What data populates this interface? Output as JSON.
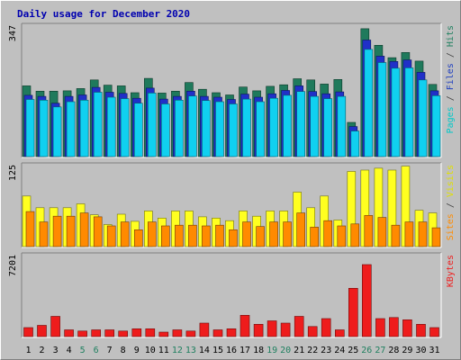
{
  "chart_data": {
    "type": "bar",
    "title": "Daily usage for December 2020",
    "categories": [
      "1",
      "2",
      "3",
      "4",
      "5",
      "6",
      "7",
      "8",
      "9",
      "10",
      "11",
      "12",
      "13",
      "14",
      "15",
      "16",
      "17",
      "18",
      "19",
      "20",
      "21",
      "22",
      "23",
      "24",
      "25",
      "26",
      "27",
      "28",
      "29",
      "30",
      "31"
    ],
    "weekend_days": [
      5,
      6,
      12,
      13,
      19,
      20,
      26,
      27
    ],
    "panels": [
      {
        "id": "hits",
        "max_label": "347",
        "ylim": [
          0,
          347
        ],
        "axis_label": [
          {
            "text": "Pages",
            "color": "#00c8c8"
          },
          {
            "text": " / ",
            "color": "#404040"
          },
          {
            "text": "Files",
            "color": "#2040c0"
          },
          {
            "text": " / ",
            "color": "#404040"
          },
          {
            "text": "Hits",
            "color": "#208060"
          }
        ],
        "series": [
          {
            "name": "Hits",
            "color": "#1f7a5c",
            "values": [
              188,
              174,
              174,
              175,
              181,
              204,
              190,
              188,
              170,
              208,
              169,
              174,
              197,
              179,
              170,
              164,
              185,
              175,
              187,
              191,
              207,
              204,
              193,
              205,
              91,
              340,
              296,
              263,
              277,
              254,
              192
            ]
          },
          {
            "name": "Files",
            "color": "#2030c8",
            "values": [
              163,
              160,
              142,
              160,
              164,
              184,
              171,
              168,
              155,
              182,
              153,
              160,
              174,
              160,
              158,
              152,
              166,
              158,
              167,
              176,
              188,
              173,
              167,
              172,
              80,
              310,
              267,
              253,
              257,
              224,
              175
            ]
          },
          {
            "name": "Pages",
            "color": "#10d0f0",
            "values": [
              152,
              150,
              132,
              146,
              150,
              171,
              158,
              154,
              142,
              169,
              140,
              150,
              161,
              149,
              146,
              140,
              153,
              146,
              155,
              163,
              173,
              160,
              154,
              160,
              68,
              285,
              250,
              235,
              236,
              204,
              162
            ]
          }
        ]
      },
      {
        "id": "visits",
        "max_label": "125",
        "ylim": [
          0,
          125
        ],
        "axis_label": [
          {
            "text": "Sites",
            "color": "#ff8c00"
          },
          {
            "text": " / ",
            "color": "#404040"
          },
          {
            "text": "Visits",
            "color": "#e0e000"
          }
        ],
        "series": [
          {
            "name": "Visits",
            "color": "#ffff20",
            "values": [
              78,
              60,
              60,
              60,
              66,
              49,
              34,
              50,
              39,
              55,
              44,
              55,
              55,
              46,
              44,
              40,
              55,
              47,
              55,
              55,
              84,
              60,
              78,
              41,
              116,
              118,
              121,
              118,
              124,
              56,
              52
            ]
          },
          {
            "name": "Sites",
            "color": "#ff8a00",
            "values": [
              54,
              38,
              47,
              47,
              52,
              46,
              32,
              38,
              26,
              38,
              32,
              33,
              33,
              32,
              33,
              26,
              38,
              31,
              38,
              38,
              52,
              30,
              40,
              32,
              35,
              48,
              45,
              33,
              38,
              38,
              29
            ]
          }
        ]
      },
      {
        "id": "kbytes",
        "max_label": "7201",
        "ylim": [
          0,
          7201
        ],
        "axis_label": [
          {
            "text": "KBytes",
            "color": "#ee2020"
          }
        ],
        "series": [
          {
            "name": "KBytes",
            "color": "#ee1c1c",
            "values": [
              800,
              1000,
              1800,
              600,
              500,
              600,
              600,
              500,
              700,
              700,
              400,
              600,
              500,
              1200,
              600,
              700,
              1900,
              1100,
              1400,
              1200,
              1800,
              900,
              1600,
              600,
              4300,
              6400,
              1600,
              1700,
              1500,
              1100,
              800
            ]
          }
        ]
      }
    ]
  },
  "colors": {
    "background": "#c0c0c0",
    "plot_background": "#c0c0c0",
    "title": "#0000b0",
    "day_label": "#000000",
    "weekend_label": "#208060"
  }
}
